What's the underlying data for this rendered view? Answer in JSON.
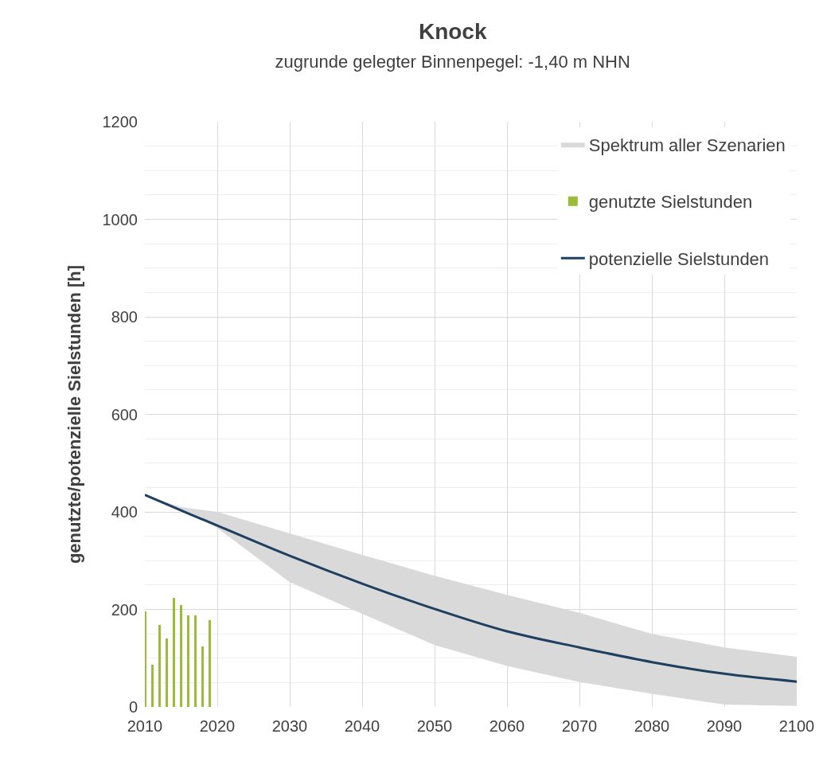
{
  "chart_data": {
    "type": "line",
    "title": "Knock",
    "subtitle": "zugrunde gelegter Binnenpegel: -1,40 m NHN",
    "ylabel": "genutzte/potenzielle Sielstunden [h]",
    "series": [
      {
        "name": "Spektrum aller Szenarien",
        "type": "area",
        "color": "#d9d9d9"
      },
      {
        "name": "genutzte Sielstunden",
        "type": "bar",
        "color": "#9bbb3b",
        "x": [
          2010,
          2011,
          2012,
          2013,
          2014,
          2015,
          2016,
          2017,
          2018,
          2019
        ],
        "values": [
          196,
          87,
          168,
          140,
          223,
          209,
          188,
          188,
          124,
          178
        ]
      },
      {
        "name": "potenzielle Sielstunden",
        "color": "#1f3f5f",
        "x": [
          2010,
          2015,
          2020,
          2030,
          2040,
          2050,
          2060,
          2070,
          2080,
          2090,
          2100
        ],
        "values": [
          435,
          403,
          372,
          310,
          253,
          201,
          155,
          122,
          92,
          68,
          52
        ],
        "lower": [
          435,
          405,
          367,
          256,
          191,
          127,
          84,
          51,
          27,
          5,
          2
        ],
        "upper": [
          435,
          410,
          400,
          356,
          312,
          269,
          230,
          193,
          150,
          122,
          103
        ]
      }
    ],
    "xlim": [
      2010,
      2100
    ],
    "xticks": [
      2010,
      2020,
      2030,
      2040,
      2050,
      2060,
      2070,
      2080,
      2090,
      2100
    ],
    "ylim": [
      0,
      1200
    ],
    "yticks": [
      0,
      200,
      400,
      600,
      800,
      1000,
      1200
    ],
    "grid": true,
    "legend": "top right",
    "marker": "none",
    "line_style": "solid"
  }
}
